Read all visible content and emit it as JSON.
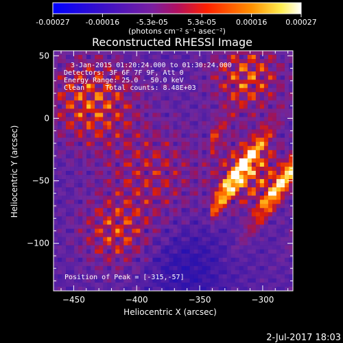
{
  "colorbar": {
    "tick_labels": [
      "-0.00027",
      "-0.00016",
      "-5.3e-05",
      "5.3e-05",
      "0.00016",
      "0.00027"
    ],
    "units_label": "(photons cm⁻² s⁻¹ asec⁻²)",
    "range": [
      -0.00027,
      0.00027
    ]
  },
  "image": {
    "title": "Reconstructed RHESSI Image",
    "annotations": [
      "3-Jan-2015 01:20:24.000 to 01:30:24.000",
      "Detectors: 3F 6F 7F 9F, Att 0",
      "Energy Range: 25.0 - 50.0 keV",
      "Clean     Total counts: 8.48E+03"
    ],
    "peak_label": "Position of Peak = [-315,-57]",
    "footer_timestamp": "2-Jul-2017 18:03"
  },
  "chart_data": {
    "type": "heatmap",
    "title": "Reconstructed RHESSI Image",
    "xlabel": "Heliocentric X (arcsec)",
    "ylabel": "Heliocentric Y (arcsec)",
    "xlim": [
      -466,
      -276
    ],
    "ylim": [
      -138,
      54
    ],
    "x_ticks": [
      -450,
      -400,
      -350,
      -300
    ],
    "y_ticks": [
      50,
      0,
      -50,
      -100
    ],
    "x_tick_labels": [
      "−450",
      "−400",
      "−350",
      "−300"
    ],
    "y_tick_labels": [
      "50",
      "0",
      "−50",
      "−100"
    ],
    "peak_position": [
      -315,
      -57
    ],
    "colormap": "blue-purple-red-yellow-white",
    "colorbar_range": [
      -0.00027,
      0.00027
    ],
    "colors": {
      "background": "#000000",
      "foreground": "#ffffff",
      "low": "#1a1aff",
      "mid": "#7a1fa0",
      "high": "#ff3300",
      "max": "#ffffff"
    }
  }
}
